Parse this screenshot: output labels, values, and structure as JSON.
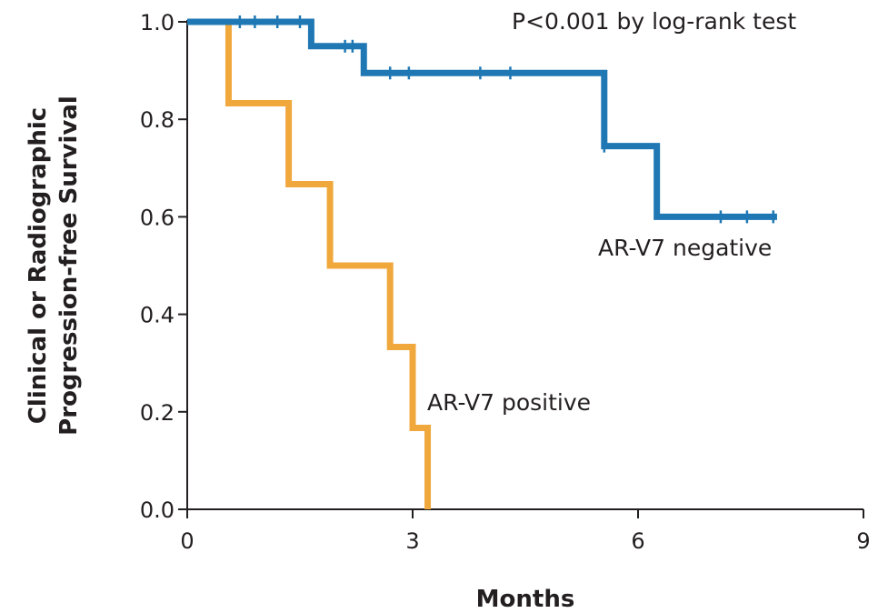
{
  "chart_data": {
    "type": "line",
    "subtype": "kaplan-meier step curve",
    "title": "",
    "xlabel": "Months",
    "ylabel_lines": [
      "Clinical or Radiographic",
      "Progression-free Survival"
    ],
    "xlim": [
      0,
      9
    ],
    "ylim": [
      0.0,
      1.0
    ],
    "xticks": [
      0,
      3,
      6,
      9
    ],
    "xtick_labels": [
      "0",
      "3",
      "6",
      "9"
    ],
    "yticks": [
      0.0,
      0.2,
      0.4,
      0.6,
      0.8,
      1.0
    ],
    "ytick_labels": [
      "0.0",
      "0.2",
      "0.4",
      "0.6",
      "0.8",
      "1.0"
    ],
    "grid": false,
    "annotation": "P<0.001 by log-rank test",
    "series": [
      {
        "name": "AR-V7 negative",
        "color": "#1f78b4",
        "steps": [
          [
            0,
            1.0
          ],
          [
            1.65,
            0.95
          ],
          [
            2.35,
            0.895
          ],
          [
            5.55,
            0.745
          ],
          [
            6.25,
            0.6
          ]
        ],
        "end_x": 7.85,
        "censor_x": [
          0.7,
          0.9,
          1.2,
          1.5,
          2.1,
          2.2,
          2.7,
          2.95,
          3.9,
          4.3,
          5.55,
          7.1,
          7.45,
          7.8
        ]
      },
      {
        "name": "AR-V7 positive",
        "color": "#f0a83c",
        "steps": [
          [
            0,
            1.0
          ],
          [
            0.55,
            0.833
          ],
          [
            1.35,
            0.667
          ],
          [
            1.9,
            0.5
          ],
          [
            2.7,
            0.333
          ],
          [
            3.0,
            0.167
          ],
          [
            3.2,
            0.0
          ]
        ],
        "end_x": 3.2,
        "censor_x": []
      }
    ]
  }
}
